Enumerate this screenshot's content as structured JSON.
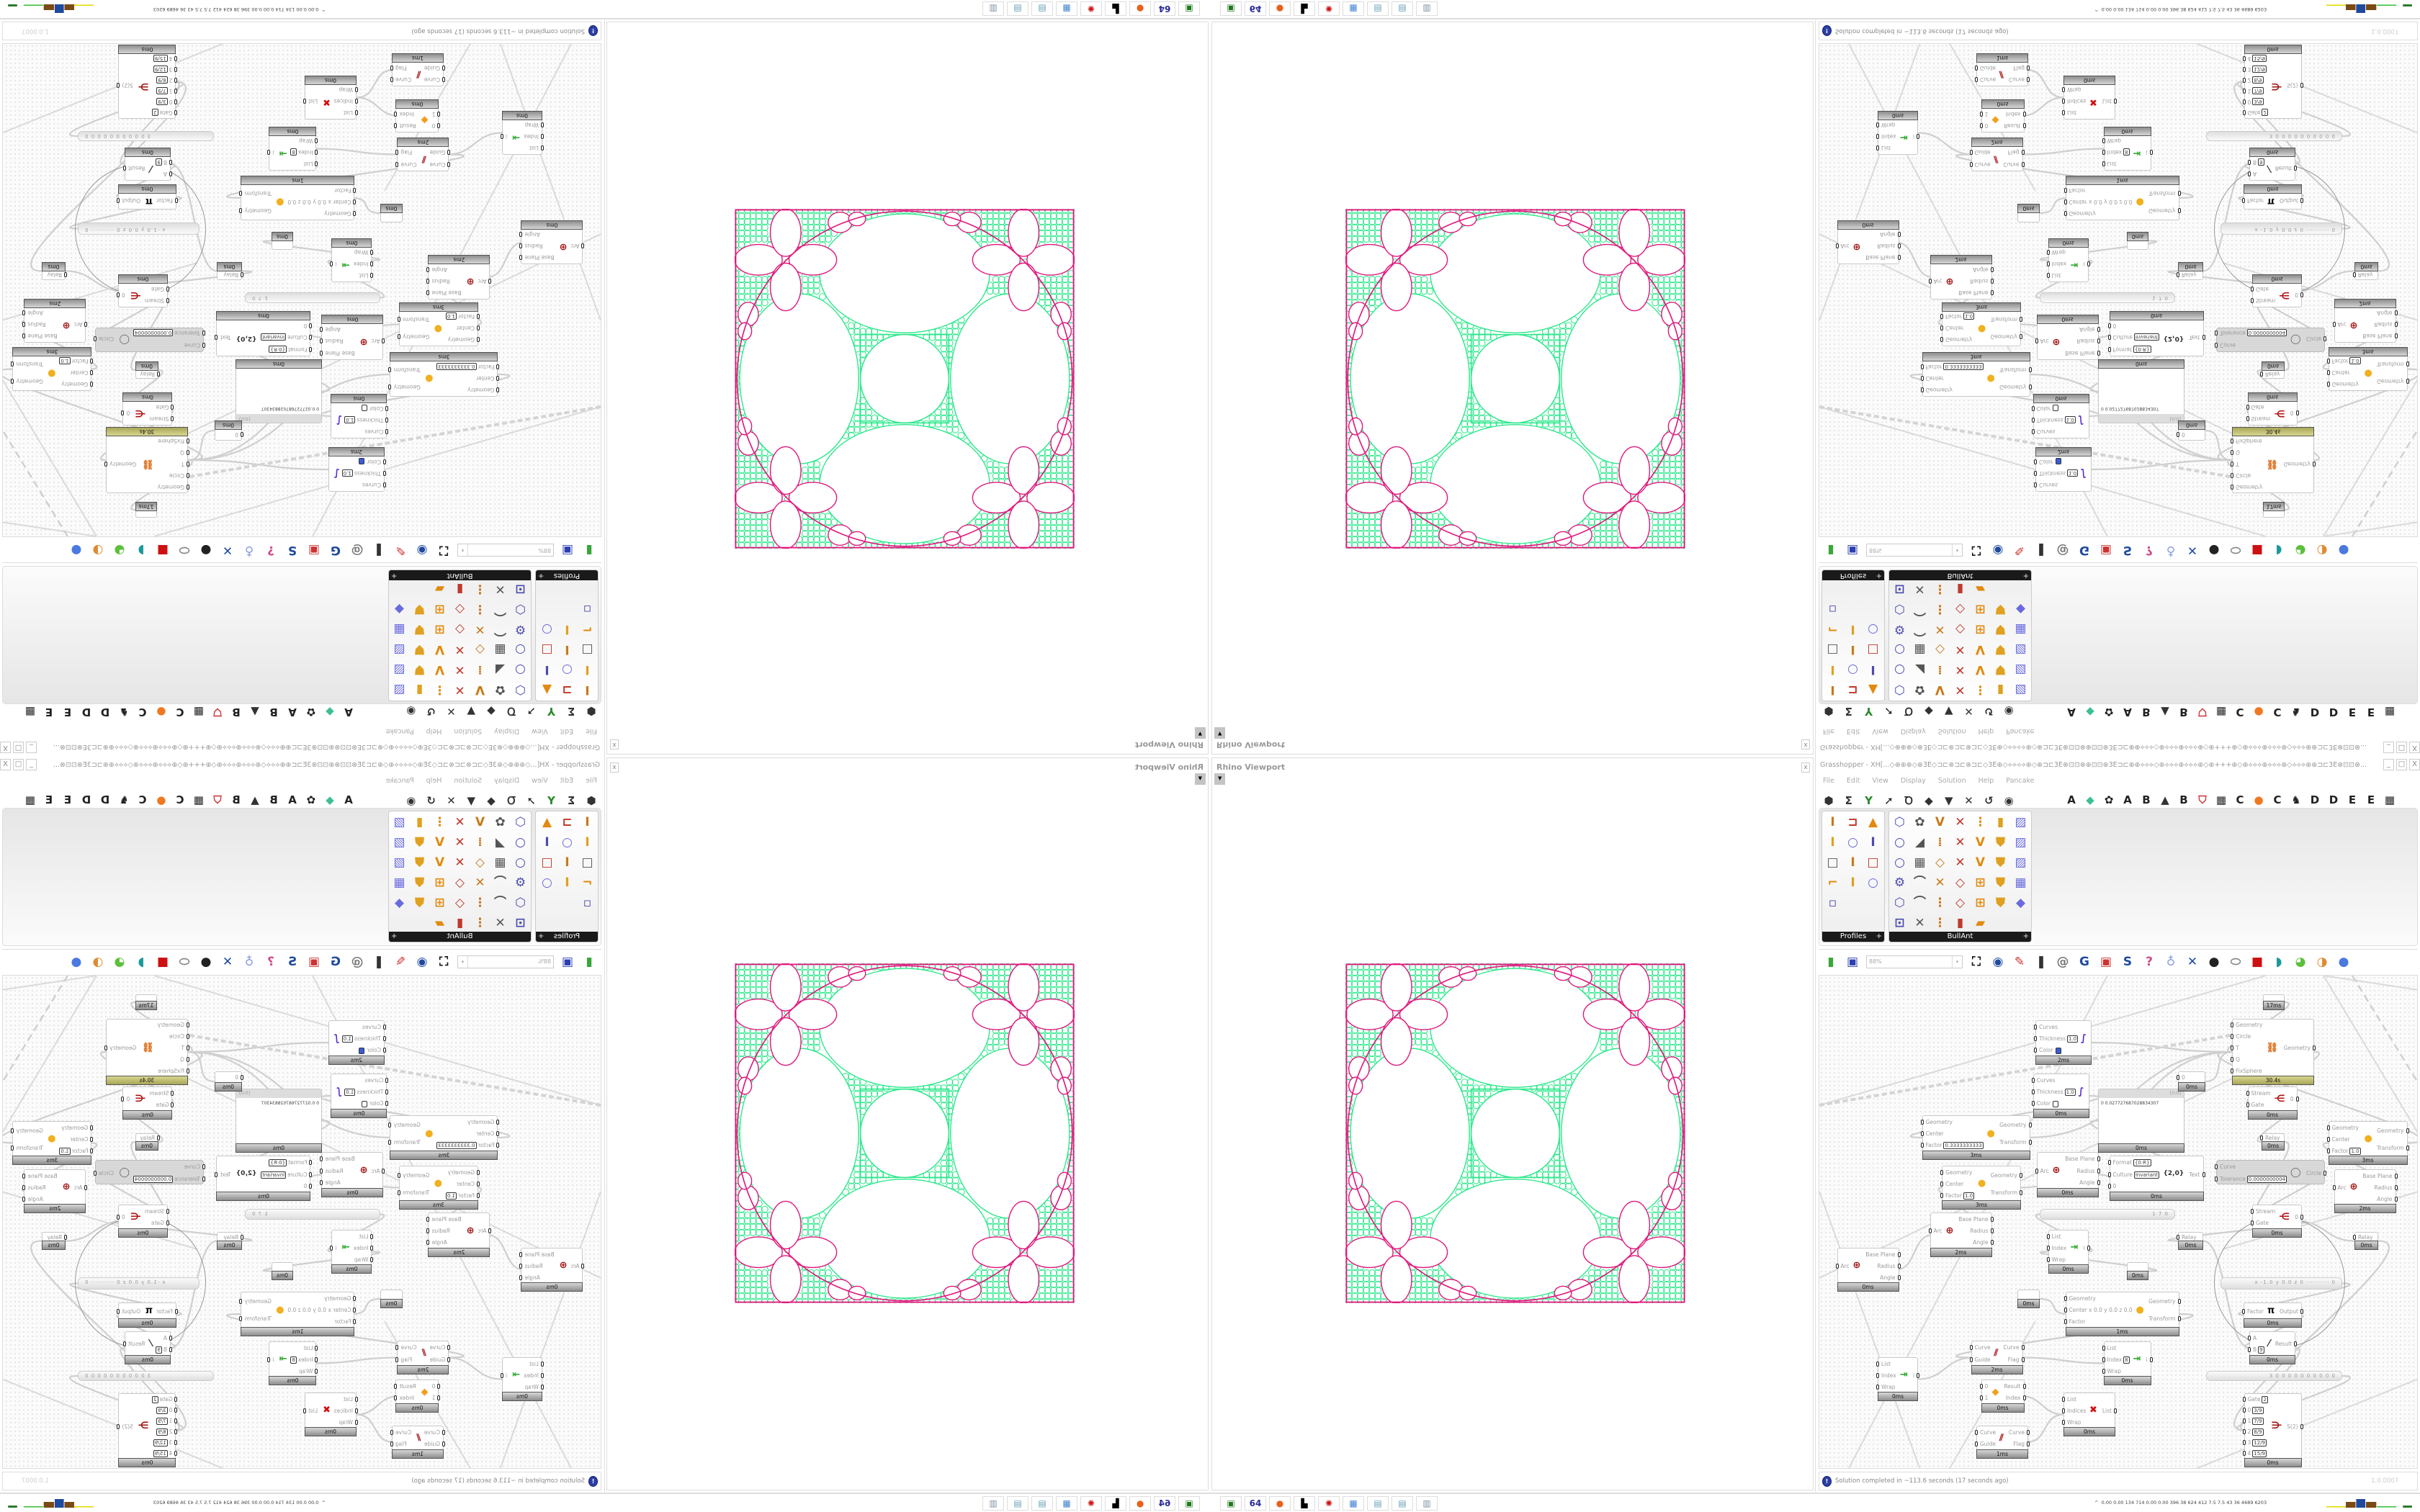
{
  "rhino_viewport": {
    "title": "Rhino Viewport",
    "close": "x",
    "dropdown": "▼"
  },
  "grasshopper": {
    "title": "Grasshopper - XH[...◇⊕⊕⊕◇⊕3E◇⊐⊏⊗⊐⊏⊗⊐⊏◇3E⊕◇⟡⟡⟡⟡⊕◇⊕⊐⊏3E⊗⊡⊡⊗⊕⊡⊡⊗3E⊐⊏⊕⊕⟡⟡⟡◇⊕⟡⟡⟡⊕⟡⟡⟡⊕◇⊕+++⊕◇⊕⟡⟡⟡⊕⟡⟡⟡⊕◇⟡⟡⟡⊕⊕⊐⊏3E⊗⊡⊡⊗...",
    "window_buttons": [
      "_",
      "□",
      "X"
    ],
    "menu": [
      "File",
      "Edit",
      "View",
      "Display",
      "Solution",
      "Help",
      "Pancake"
    ],
    "ribbon_left": [
      {
        "icon": "hexagon-icon",
        "glyph": "⬢"
      },
      {
        "icon": "sigma-icon",
        "glyph": "Σ"
      },
      {
        "icon": "vector-icon",
        "glyph": "Y"
      },
      {
        "icon": "arrow-icon",
        "glyph": "➚"
      },
      {
        "icon": "curve-icon",
        "glyph": "Ꝺ"
      },
      {
        "icon": "surface-icon",
        "glyph": "◆"
      },
      {
        "icon": "mesh-icon",
        "glyph": "▼"
      },
      {
        "icon": "intersect-icon",
        "glyph": "✕"
      },
      {
        "icon": "transform-icon",
        "glyph": "↺"
      },
      {
        "icon": "display-eye-icon",
        "glyph": "◉"
      }
    ],
    "ribbon_right": [
      "A",
      "◆",
      "✿",
      "A",
      "B",
      "▲",
      "B",
      "⛉",
      "▦",
      "C",
      "●",
      "C",
      "♞",
      "D",
      "D",
      "E",
      "E",
      "▦"
    ],
    "palettes": [
      {
        "name": "Profiles",
        "expand": "+",
        "icons": [
          "I",
          "⊐",
          "▲",
          "I",
          "○",
          "I",
          "□",
          "I",
          "□",
          "⌐",
          "I",
          "○",
          "▫"
        ]
      },
      {
        "name": "BullAnt",
        "expand": "+",
        "icons": [
          "⬡",
          "✿",
          "V",
          "✕",
          "⋮",
          "▮",
          "▨",
          "○",
          "◢",
          "⁞",
          "✕",
          "V",
          "⛊",
          "▨",
          "○",
          "▦",
          "◇",
          "✕",
          "V",
          "⛊",
          "▨",
          "⚙",
          "⌒",
          "✕",
          "◇",
          "⊞",
          "⛊",
          "▦",
          "⬡",
          "⌒",
          "⋮",
          "◇",
          "⊞",
          "⛊",
          "◆",
          "⊡",
          "✕",
          "⋮",
          "▮",
          "▰"
        ]
      }
    ],
    "toolbar": {
      "zoom": "88%",
      "zoom_arrow": "▾",
      "icons": [
        "⛶",
        "◉",
        "✎",
        "❚",
        "@",
        "G",
        "▣",
        "S",
        "?",
        "♁",
        "✕",
        "●",
        "⬭",
        "■",
        "◗",
        "◕",
        "◑",
        "●"
      ]
    },
    "canvas": {
      "nodes": [
        {
          "in": [],
          "out": [],
          "foot": "17ms"
        },
        {
          "in": [
            [
              "Curves"
            ],
            [
              "Thickness",
              "1.0"
            ],
            [
              "Color"
            ]
          ],
          "out": [],
          "foot": "2ms",
          "icon": "custom-preview-icon",
          "glyph": "∫",
          "swatch": "#3a5bd9"
        },
        {
          "in": [
            [
              "Curves"
            ],
            [
              "Thickness",
              "1.0"
            ],
            [
              "Color"
            ]
          ],
          "out": [],
          "foot": "0ms",
          "icon": "custom-preview-icon",
          "glyph": "∫",
          "swatch": "#ffffff"
        },
        {
          "in": [
            [
              "Geometry"
            ],
            [
              "Center"
            ],
            [
              "Factor",
              "0.3333333333"
            ]
          ],
          "out": [
            "Geometry",
            "Transform"
          ],
          "foot": "3ms",
          "icon": "scale-icon",
          "glyph": "●"
        },
        {
          "in": [
            [
              "Geometry"
            ],
            [
              "Center"
            ],
            [
              "Factor",
              "1.0"
            ]
          ],
          "out": [
            "Geometry",
            "Transform"
          ],
          "foot": "3ms",
          "icon": "scale-icon",
          "glyph": "●"
        },
        {
          "in": [
            [
              "Arc"
            ]
          ],
          "out": [
            "Base Plane",
            "Radius",
            "Angle"
          ],
          "foot": "2ms",
          "icon": "arc-target-icon",
          "glyph": "⊕"
        },
        {
          "in": [
            [
              "Arc"
            ]
          ],
          "out": [
            "Base Plane",
            "Radius",
            "Angle"
          ],
          "foot": "0ms",
          "icon": "arc-target-icon",
          "glyph": "⊕"
        },
        {
          "type": "panel",
          "header": "{0;0}",
          "text": "0  0.027727687028834307",
          "foot": "0ms"
        },
        {
          "in": [
            [
              "0"
            ]
          ],
          "out": [],
          "foot": "0ms"
        },
        {
          "in": [
            [
              "Geometry"
            ],
            [
              "Circle"
            ],
            [
              "T"
            ],
            [
              "Q"
            ],
            [
              "FixSphere"
            ]
          ],
          "out": [
            "Geometry"
          ],
          "foot": "30.4s",
          "olive": true,
          "icon": "kangaroo-solver-icon",
          "glyph": "⛓"
        },
        {
          "in": [
            [
              "Stream"
            ],
            [
              "Gate"
            ]
          ],
          "out": [
            "0"
          ],
          "foot": "0ms",
          "icon": "stream-gate-icon",
          "glyph": "⋲"
        },
        {
          "in": [
            [
              "Relay"
            ]
          ],
          "out": [],
          "foot": "0ms"
        },
        {
          "in": [
            [
              "Geometry"
            ],
            [
              "Center"
            ],
            [
              "Factor",
              "1.0"
            ]
          ],
          "out": [
            "Geometry",
            "Transform"
          ],
          "foot": "3ms",
          "icon": "scale-icon",
          "glyph": "●"
        },
        {
          "in": [
            [
              "Arc"
            ]
          ],
          "out": [
            "Base Plane",
            "Radius",
            "Angle"
          ],
          "foot": "2ms",
          "icon": "arc-target-icon",
          "glyph": "⊕"
        },
        {
          "in": [
            [
              "Curve"
            ],
            [
              "Tolerance",
              "0.0000000004"
            ]
          ],
          "out": [
            "Circle"
          ],
          "disabled": true,
          "icon": "fit-circle-icon",
          "glyph": "◯"
        },
        {
          "in": [
            [
              "Format",
              "{0:R}"
            ],
            [
              "Culture",
              "Invariant"
            ],
            [
              "0"
            ]
          ],
          "out": [
            "Text"
          ],
          "foot": "0ms",
          "icon": "format-icon",
          "glyph": "{2,0}"
        },
        {
          "in": [
            [
              "Arc"
            ]
          ],
          "out": [
            "Base Plane",
            "Radius",
            "Angle"
          ],
          "foot": "0ms",
          "icon": "arc-target-icon",
          "glyph": "⊕"
        },
        {
          "type": "slider",
          "text": "1 7 0"
        },
        {
          "in": [
            [
              "List"
            ],
            [
              "Index"
            ],
            [
              "Wrap"
            ]
          ],
          "out": [
            "i"
          ],
          "foot": "0ms",
          "icon": "list-item-icon",
          "glyph": "⇥"
        },
        {
          "in": [],
          "out": [],
          "foot": "0ms"
        },
        {
          "in": [
            [
              "Stream"
            ],
            [
              "Gate"
            ]
          ],
          "out": [
            "0"
          ],
          "foot": "0ms",
          "icon": "stream-gate-icon",
          "glyph": "⋲"
        },
        {
          "in": [
            [
              "Relay"
            ]
          ],
          "out": [],
          "foot": "0ms"
        },
        {
          "in": [
            [
              "Relay"
            ]
          ],
          "out": [],
          "foot": "0ms"
        },
        {
          "type": "slider",
          "text": "x -1.0  y 0.0  z 0  ·········· 0"
        },
        {
          "in": [
            [
              "Geometry"
            ],
            [
              "Center  x 0.0 y 0.0 z 0.0"
            ],
            [
              "Factor"
            ]
          ],
          "out": [
            "Geometry",
            "Transform"
          ],
          "foot": "1ms",
          "icon": "scale-icon",
          "glyph": "●"
        },
        {
          "in": [
            [
              "Factor"
            ]
          ],
          "out": [
            "Output"
          ],
          "foot": "0ms",
          "icon": "pi-icon",
          "glyph": "π"
        },
        {
          "in": [
            [
              "A"
            ],
            [
              "B",
              "9"
            ]
          ],
          "out": [
            "Result"
          ],
          "foot": "0ms",
          "icon": "division-icon",
          "glyph": "⁄"
        },
        {
          "type": "slider",
          "text": "3 0 0 0 0 0 0 0 0 0 0"
        },
        {
          "in": [
            [
              "Gate",
              "2"
            ],
            [
              "0",
              "3/9"
            ],
            [
              "1",
              "7/9"
            ],
            [
              "2",
              "8/9"
            ],
            [
              "3",
              "12/9"
            ],
            [
              "4",
              "15/9"
            ]
          ],
          "out": [
            "S(2)"
          ],
          "foot": "0ms",
          "icon": "stream-filter-icon",
          "glyph": "⋺"
        },
        {
          "in": [
            [
              "Curve"
            ],
            [
              "Guide"
            ]
          ],
          "out": [
            "Curve",
            "Flag"
          ],
          "foot": "2ms",
          "icon": "flip-curve-icon",
          "glyph": "⫽"
        },
        {
          "in": [
            [
              "List"
            ],
            [
              "Index"
            ],
            [
              "Wrap"
            ]
          ],
          "out": [
            "i"
          ],
          "foot": "0ms",
          "icon": "list-item-icon",
          "glyph": "⇥"
        },
        {
          "in": [
            [
              "0"
            ],
            [
              "1"
            ]
          ],
          "out": [
            "Result",
            "Index"
          ],
          "foot": "0ms",
          "icon": "pick-icon",
          "glyph": "◆"
        },
        {
          "in": [
            [
              "List"
            ],
            [
              "Index",
              "8"
            ],
            [
              "Wrap"
            ]
          ],
          "out": [
            "i"
          ],
          "foot": "0ms",
          "icon": "list-item-icon",
          "glyph": "⇥"
        },
        {
          "in": [
            [
              "List"
            ],
            [
              "Indices"
            ],
            [
              "Wrap"
            ]
          ],
          "out": [
            "List"
          ],
          "foot": "0ms",
          "icon": "cull-index-icon",
          "glyph": "✖"
        },
        {
          "in": [
            [
              "Curve"
            ],
            [
              "Guide"
            ]
          ],
          "out": [
            "Curve",
            "Flag"
          ],
          "foot": "1ms",
          "icon": "flip-curve-icon",
          "glyph": "⫽"
        },
        {
          "in": [],
          "out": [],
          "foot": "0ms"
        }
      ]
    },
    "status": {
      "icon": "info-icon",
      "message": "Solution completed in ~113.6 seconds (17 seconds ago)",
      "version": "1.0.0007"
    }
  },
  "taskbar": {
    "icons": [
      {
        "name": "green-drive-icon",
        "glyph": "▣",
        "color": "#1d7a1d"
      },
      {
        "name": "floppy-64-icon",
        "glyph": "64",
        "color": "#2b2b9a"
      },
      {
        "name": "firefox-icon",
        "glyph": "●",
        "color": "#e8601c"
      },
      {
        "name": "black-cat-icon",
        "glyph": "▙",
        "color": "#000000"
      },
      {
        "name": "red-app-icon",
        "glyph": "✺",
        "color": "#cc1111"
      },
      {
        "name": "calculator-icon",
        "glyph": "▦",
        "color": "#3f7fd0"
      },
      {
        "name": "notepad-icon",
        "glyph": "▤",
        "color": "#6aa0b8"
      },
      {
        "name": "notepad-icon-2",
        "glyph": "▤",
        "color": "#6aa0b8"
      },
      {
        "name": "document-stack-icon",
        "glyph": "▥",
        "color": "#7f8fa6"
      }
    ],
    "stats_chevron": "^",
    "stats": "0.00 0.00 134  714  0.00 0.00 396  38  624  412  7.5  7.5  43  36  4689 6203"
  },
  "colors": {
    "fractal_green": "#2fe88c",
    "fractal_pink": "#e0197d",
    "kangaroo_footer": "#c3c077",
    "status_icon": "#2c3fa6"
  }
}
